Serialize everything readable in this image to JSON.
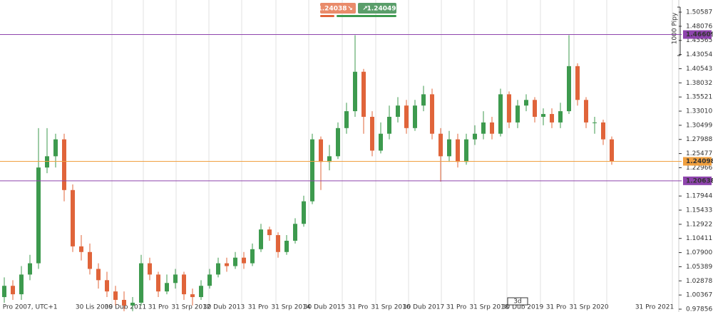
{
  "chart_data": {
    "type": "candlestick",
    "ylim": [
      0.9735,
      1.5274
    ],
    "yticks": [
      1.50587,
      1.48076,
      1.45565,
      1.43054,
      1.40543,
      1.38032,
      1.35521,
      {
        "value": 1.3301,
        "label": "1.33010"
      },
      1.30499,
      1.27988,
      1.25477,
      1.22966,
      1.17944,
      1.15433,
      1.12922,
      1.10411,
      {
        "value": 1.079,
        "label": "1.07900"
      },
      1.05389,
      1.02878,
      1.00367,
      0.97856
    ],
    "x_labels": [
      "31 Pro 2007, UTC+1",
      "30 Lis 2009",
      "30 Dub 2011",
      "31 Pro",
      "31 Srp 2012",
      "30 Dub 2013",
      "31 Pro",
      "31 Srp 2014",
      "30 Dub 2015",
      "31 Pro",
      "31 Srp 2016",
      "30 Dub 2017",
      "31 Pro",
      "31 Srp 2018",
      "30 Dub 2019",
      "31 Pro",
      "31 Srp 2020",
      "31 Pro 2021"
    ],
    "up_color": "#3d9a4e",
    "down_color": "#e0643a",
    "grid": true,
    "open": [
      1.0,
      1.02,
      1.005,
      1.04,
      1.06,
      1.23,
      1.25,
      1.28,
      1.19,
      1.09,
      1.08,
      1.05,
      1.03,
      1.01,
      0.995,
      0.985,
      0.99,
      1.06,
      1.04,
      1.01,
      1.025,
      1.04,
      1.005,
      1.0,
      1.02,
      1.04,
      1.06,
      1.055,
      1.07,
      1.06,
      1.085,
      1.12,
      1.11,
      1.08,
      1.1,
      1.13,
      1.17,
      1.28,
      1.24,
      1.25,
      1.3,
      1.33,
      1.4,
      1.32,
      1.26,
      1.29,
      1.32,
      1.34,
      1.3,
      1.34,
      1.36,
      1.29,
      1.25,
      1.28,
      1.24,
      1.28,
      1.29,
      1.31,
      1.29,
      1.36,
      1.31,
      1.34,
      1.35,
      1.32,
      1.325,
      1.31,
      1.33,
      1.41,
      1.35,
      1.31,
      1.31,
      1.28
    ],
    "high": [
      1.035,
      1.03,
      1.055,
      1.075,
      1.3,
      1.3,
      1.29,
      1.29,
      1.2,
      1.11,
      1.095,
      1.06,
      1.045,
      1.02,
      1.01,
      1.0,
      1.075,
      1.07,
      1.045,
      1.04,
      1.05,
      1.045,
      1.015,
      1.03,
      1.05,
      1.07,
      1.07,
      1.08,
      1.08,
      1.095,
      1.13,
      1.125,
      1.115,
      1.11,
      1.14,
      1.18,
      1.29,
      1.285,
      1.27,
      1.31,
      1.345,
      1.465,
      1.405,
      1.33,
      1.31,
      1.34,
      1.355,
      1.35,
      1.35,
      1.375,
      1.37,
      1.3,
      1.295,
      1.29,
      1.29,
      1.305,
      1.33,
      1.32,
      1.37,
      1.365,
      1.35,
      1.36,
      1.355,
      1.335,
      1.335,
      1.345,
      1.465,
      1.415,
      1.355,
      1.32,
      1.315,
      1.285
    ],
    "low": [
      0.99,
      0.995,
      0.995,
      1.03,
      1.05,
      1.22,
      1.23,
      1.17,
      1.08,
      1.065,
      1.04,
      1.015,
      1.0,
      0.985,
      0.975,
      0.975,
      0.985,
      1.03,
      1.0,
      1.005,
      1.015,
      0.995,
      0.985,
      0.995,
      1.015,
      1.035,
      1.045,
      1.05,
      1.05,
      1.055,
      1.08,
      1.1,
      1.07,
      1.075,
      1.095,
      1.125,
      1.165,
      1.19,
      1.225,
      1.245,
      1.29,
      1.32,
      1.29,
      1.25,
      1.255,
      1.28,
      1.31,
      1.29,
      1.295,
      1.33,
      1.28,
      1.205,
      1.24,
      1.23,
      1.235,
      1.27,
      1.28,
      1.28,
      1.285,
      1.3,
      1.3,
      1.33,
      1.31,
      1.305,
      1.3,
      1.3,
      1.325,
      1.34,
      1.3,
      1.29,
      1.27,
      1.235
    ],
    "close": [
      1.02,
      1.005,
      1.04,
      1.06,
      1.23,
      1.25,
      1.28,
      1.19,
      1.09,
      1.08,
      1.05,
      1.03,
      1.01,
      0.995,
      0.985,
      0.99,
      1.06,
      1.04,
      1.01,
      1.025,
      1.04,
      1.005,
      1.0,
      1.02,
      1.04,
      1.06,
      1.055,
      1.07,
      1.06,
      1.085,
      1.12,
      1.11,
      1.08,
      1.1,
      1.13,
      1.17,
      1.28,
      1.24,
      1.25,
      1.3,
      1.33,
      1.4,
      1.32,
      1.26,
      1.29,
      1.32,
      1.34,
      1.3,
      1.34,
      1.36,
      1.29,
      1.25,
      1.28,
      1.24,
      1.28,
      1.29,
      1.31,
      1.29,
      1.36,
      1.31,
      1.34,
      1.35,
      1.32,
      1.325,
      1.31,
      1.33,
      1.41,
      1.35,
      1.31,
      1.31,
      1.28,
      1.241
    ],
    "levels": [
      {
        "value": 1.46609,
        "color": "#8e44ad"
      },
      {
        "value": 1.24098,
        "color": "#f0a040"
      },
      {
        "value": 1.20638,
        "color": "#8e44ad"
      }
    ],
    "sell_price": "1.24038",
    "buy_price": "1.24049",
    "scale_label": "1000 Pipy",
    "timeframe": "3d"
  }
}
